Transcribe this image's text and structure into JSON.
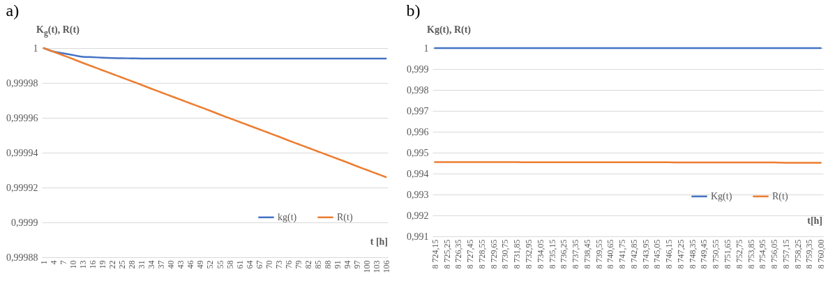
{
  "chart_data": [
    {
      "type": "line",
      "title": "a)",
      "ylabel": "K$_{g}$(t),  R(t)",
      "xlabel": "t [h]",
      "categories": [
        "1",
        "4",
        "7",
        "10",
        "13",
        "16",
        "19",
        "22",
        "25",
        "28",
        "31",
        "34",
        "37",
        "40",
        "43",
        "46",
        "49",
        "52",
        "55",
        "58",
        "61",
        "64",
        "67",
        "70",
        "73",
        "76",
        "79",
        "82",
        "85",
        "88",
        "91",
        "94",
        "97",
        "100",
        "103",
        "106"
      ],
      "series": [
        {
          "name": "kg(t)",
          "color": "#4472c4",
          "values": [
            1,
            0.999998,
            0.999997,
            0.999996,
            0.999995,
            0.9999948,
            0.9999945,
            0.9999943,
            0.9999942,
            0.9999941,
            0.999994,
            0.999994,
            0.999994,
            0.999994,
            0.999994,
            0.999994,
            0.999994,
            0.999994,
            0.999994,
            0.999994,
            0.999994,
            0.999994,
            0.999994,
            0.999994,
            0.999994,
            0.999994,
            0.999994,
            0.999994,
            0.999994,
            0.999994,
            0.999994,
            0.999994,
            0.999994,
            0.999994,
            0.999994,
            0.999994
          ]
        },
        {
          "name": "R(t)",
          "color": "#ed7d31",
          "values": [
            1,
            0.9999979,
            0.9999958,
            0.9999937,
            0.9999915,
            0.9999894,
            0.9999873,
            0.9999852,
            0.9999831,
            0.999981,
            0.9999789,
            0.9999767,
            0.9999746,
            0.9999725,
            0.9999704,
            0.9999683,
            0.9999662,
            0.9999641,
            0.9999619,
            0.9999598,
            0.9999577,
            0.9999556,
            0.9999535,
            0.9999514,
            0.9999493,
            0.9999471,
            0.999945,
            0.9999429,
            0.9999408,
            0.9999387,
            0.9999366,
            0.9999345,
            0.9999323,
            0.9999302,
            0.9999281,
            0.999926
          ]
        }
      ],
      "ylim": [
        0.99988,
        1
      ],
      "yticks": [
        {
          "value": 0.99988,
          "label": "0,99988"
        },
        {
          "value": 0.9999,
          "label": "0,9999"
        },
        {
          "value": 0.99992,
          "label": "0,99992"
        },
        {
          "value": 0.99994,
          "label": "0,99994"
        },
        {
          "value": 0.99996,
          "label": "0,99996"
        },
        {
          "value": 0.99998,
          "label": "0,99998"
        },
        1
      ],
      "grid": "y",
      "legend": "bottom right"
    },
    {
      "type": "line",
      "title": "b)",
      "ylabel": "Kg(t), R(t)",
      "xlabel": "t[h]",
      "categories": [
        "8 724,15",
        "8 725,25",
        "8 726,35",
        "8 727,45",
        "8 728,55",
        "8 729,65",
        "8 730,75",
        "8 731,85",
        "8 732,95",
        "8 734,05",
        "8 735,15",
        "8 736,25",
        "8 737,35",
        "8 738,45",
        "8 739,55",
        "8 740,65",
        "8 741,75",
        "8 742,85",
        "8 743,95",
        "8 745,05",
        "8 746,15",
        "8 747,25",
        "8 748,35",
        "8 749,45",
        "8 750,55",
        "8 751,65",
        "8 752,75",
        "8 753,85",
        "8 754,95",
        "8 756,05",
        "8 757,15",
        "8 758,25",
        "8 759,35",
        "8 760,00"
      ],
      "series": [
        {
          "name": "Kg(t)",
          "color": "#4472c4",
          "values": [
            1,
            1,
            1,
            1,
            1,
            1,
            1,
            1,
            1,
            1,
            1,
            1,
            1,
            1,
            1,
            1,
            1,
            1,
            1,
            1,
            1,
            1,
            1,
            1,
            1,
            1,
            1,
            1,
            1,
            1,
            1,
            1,
            1,
            1
          ]
        },
        {
          "name": "R(t)",
          "color": "#ed7d31",
          "values": [
            0.99455,
            0.99455,
            0.99455,
            0.99455,
            0.99455,
            0.99455,
            0.99455,
            0.99455,
            0.99454,
            0.99454,
            0.99454,
            0.99454,
            0.99454,
            0.99454,
            0.99454,
            0.99454,
            0.99454,
            0.99454,
            0.99454,
            0.99454,
            0.99454,
            0.99453,
            0.99453,
            0.99453,
            0.99453,
            0.99453,
            0.99453,
            0.99453,
            0.99453,
            0.99453,
            0.99452,
            0.99452,
            0.99452,
            0.99452
          ]
        }
      ],
      "ylim": [
        0.991,
        1
      ],
      "yticks": [
        {
          "value": 0.991,
          "label": "0,991"
        },
        {
          "value": 0.992,
          "label": "0,992"
        },
        {
          "value": 0.993,
          "label": "0,993"
        },
        {
          "value": 0.994,
          "label": "0,994"
        },
        {
          "value": 0.995,
          "label": "0,995"
        },
        {
          "value": 0.996,
          "label": "0,996"
        },
        {
          "value": 0.997,
          "label": "0,997"
        },
        {
          "value": 0.998,
          "label": "0,998"
        },
        {
          "value": 0.999,
          "label": "0,999"
        },
        1
      ],
      "grid": "y",
      "legend": "bottom right"
    }
  ]
}
